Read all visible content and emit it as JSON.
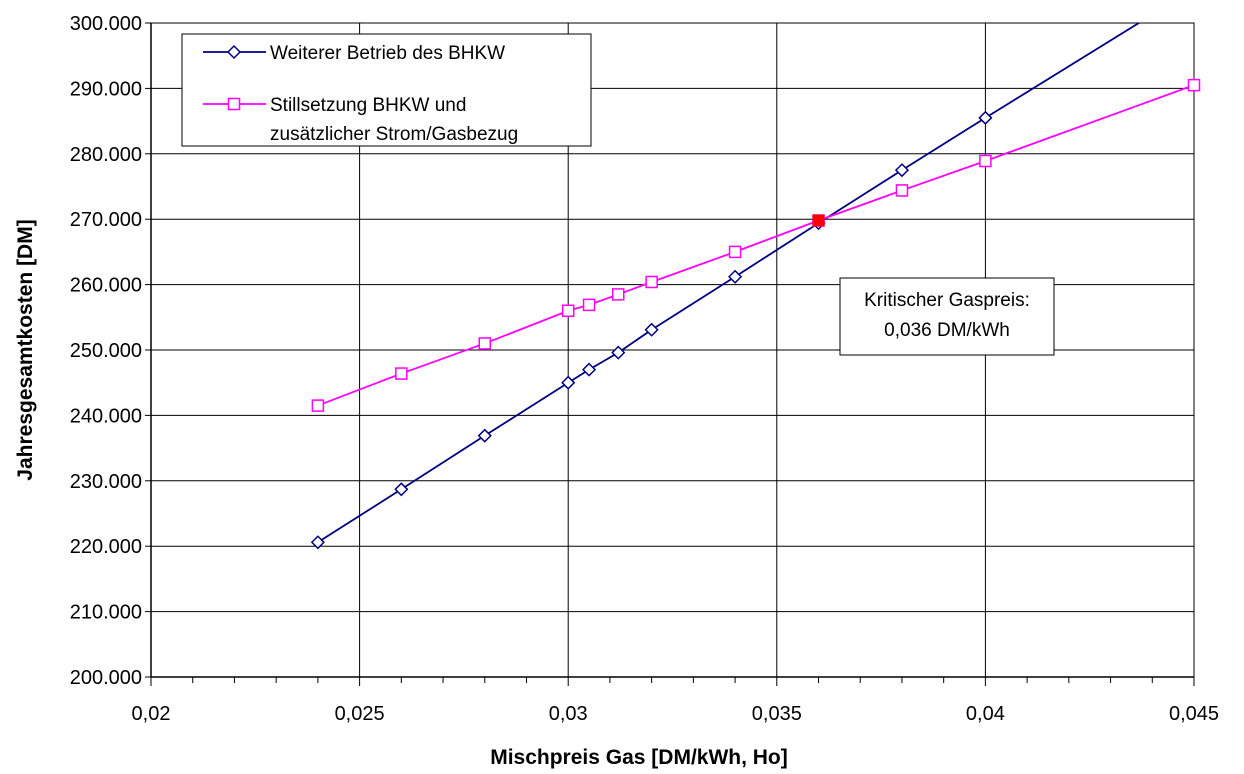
{
  "chart_data": {
    "type": "line",
    "xlabel": "Mischpreis Gas [DM/kWh, Ho]",
    "ylabel": "Jahresgesamtkosten [DM]",
    "xlim": [
      0.02,
      0.045
    ],
    "ylim": [
      200000,
      300000
    ],
    "x_ticks": [
      "0,02",
      "0,025",
      "0,03",
      "0,035",
      "0,04",
      "0,045"
    ],
    "x_tick_values": [
      0.02,
      0.025,
      0.03,
      0.035,
      0.04,
      0.045
    ],
    "x_minor_step": 0.001,
    "y_ticks": [
      "200.000",
      "210.000",
      "220.000",
      "230.000",
      "240.000",
      "250.000",
      "260.000",
      "270.000",
      "280.000",
      "290.000",
      "300.000"
    ],
    "y_tick_values": [
      200000,
      210000,
      220000,
      230000,
      240000,
      250000,
      260000,
      270000,
      280000,
      290000,
      300000
    ],
    "grid": true,
    "legend_position": "top-left",
    "series": [
      {
        "name": "Weiterer Betrieb des BHKW",
        "color": "#000080",
        "marker": "diamond",
        "x": [
          0.024,
          0.026,
          0.028,
          0.03,
          0.0305,
          0.0312,
          0.032,
          0.034,
          0.036,
          0.038,
          0.04
        ],
        "y": [
          220600,
          228700,
          236900,
          245000,
          247000,
          249600,
          253100,
          261200,
          269400,
          277500,
          285500
        ],
        "extends_to": {
          "x": 0.0452,
          "y": 306000
        }
      },
      {
        "name_lines": [
          "Stillsetzung BHKW und",
          "zusätzlicher Strom/Gasbezug"
        ],
        "color": "#ff00ff",
        "marker": "square",
        "x": [
          0.024,
          0.026,
          0.028,
          0.03,
          0.0305,
          0.0312,
          0.032,
          0.034,
          0.036,
          0.038,
          0.04,
          0.045
        ],
        "y": [
          241500,
          246400,
          251000,
          256000,
          256900,
          258500,
          260400,
          265000,
          269800,
          274400,
          278900,
          290500
        ]
      }
    ],
    "highlight_point": {
      "x": 0.036,
      "y": 269800,
      "color": "#ff0000"
    },
    "annotation": {
      "lines": [
        "Kritischer Gaspreis:",
        "0,036 DM/kWh"
      ]
    }
  }
}
